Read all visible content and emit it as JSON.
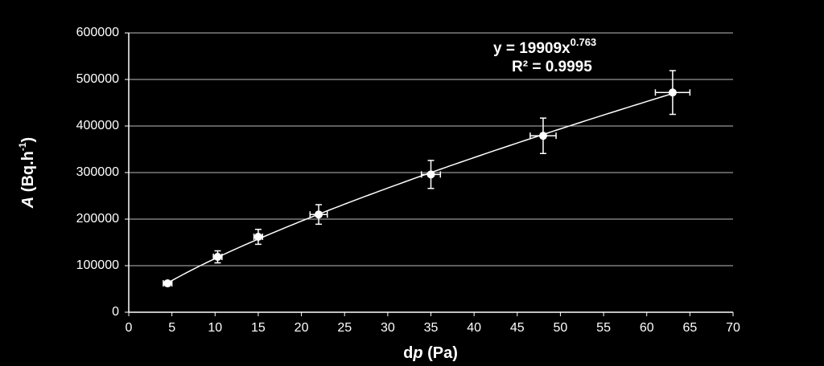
{
  "chart_data": {
    "type": "scatter",
    "x_label": {
      "italic_before": "d",
      "italic": "p",
      "text": " (Pa)"
    },
    "y_label": {
      "italic": "A",
      "text": " (Bq.h",
      "superscript": "-1",
      "close": ")"
    },
    "x": [
      4.5,
      10.3,
      15,
      22,
      35,
      48,
      63
    ],
    "values": [
      62000,
      119000,
      162000,
      210000,
      296000,
      379000,
      472000
    ],
    "y_errors": [
      4000,
      13000,
      16000,
      21000,
      30000,
      38000,
      47000
    ],
    "x_errors": [
      0.5,
      0.5,
      0.5,
      1,
      1.1,
      1.5,
      2
    ],
    "color": "#ffffff",
    "trendline": {
      "equation": "y = 19909x",
      "exponent": "0.763",
      "r_squared": "R² = 0.9995",
      "coefficient": 19909,
      "power": 0.763
    },
    "xlim": [
      0,
      70
    ],
    "xticks": [
      0,
      5,
      10,
      15,
      20,
      25,
      30,
      35,
      40,
      45,
      50,
      55,
      60,
      65,
      70
    ],
    "ylim": [
      0,
      600000
    ],
    "yticks": [
      0,
      100000,
      200000,
      300000,
      400000,
      500000,
      600000
    ],
    "grid": true
  }
}
